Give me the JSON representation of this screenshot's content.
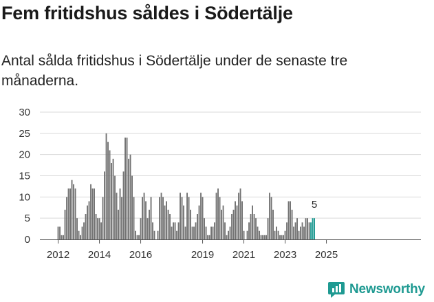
{
  "title": "Fem fritidshus såldes i Södertälje",
  "subtitle": "Antal sålda fritidshus i Södertälje under de senaste tre månaderna.",
  "brand": "Newsworthy",
  "colors": {
    "bar": "#737373",
    "highlight": "#1f9a92",
    "grid": "#d9d9d9",
    "axis": "#555555"
  },
  "chart_data": {
    "type": "bar",
    "title": "Fem fritidshus såldes i Södertälje",
    "xlabel": "",
    "ylabel": "",
    "ylim": [
      0,
      30
    ],
    "yticks": [
      0,
      5,
      10,
      15,
      20,
      25,
      30
    ],
    "x_start": "2012-01",
    "x_end": "2025-11",
    "x_ticks": [
      "2012",
      "2014",
      "2016",
      "2019",
      "2021",
      "2023",
      "2025"
    ],
    "highlight_label": "5",
    "values": [
      3,
      3,
      1,
      1,
      7,
      10,
      12,
      12,
      14,
      13,
      12,
      5,
      2,
      1,
      3,
      4,
      6,
      8,
      9,
      13,
      12,
      12,
      6,
      5,
      5,
      4,
      10,
      16,
      25,
      23,
      21,
      18,
      19,
      15,
      11,
      7,
      12,
      10,
      16,
      24,
      24,
      19,
      20,
      15,
      10,
      2,
      1,
      1,
      5,
      10,
      11,
      9,
      5,
      7,
      10,
      4,
      2,
      0,
      2,
      10,
      11,
      10,
      8,
      9,
      7,
      6,
      3,
      4,
      4,
      2,
      4,
      11,
      10,
      8,
      3,
      11,
      10,
      7,
      3,
      3,
      4,
      6,
      8,
      11,
      10,
      5,
      3,
      1,
      1,
      3,
      3,
      4,
      11,
      12,
      10,
      7,
      8,
      4,
      1,
      2,
      3,
      6,
      7,
      9,
      8,
      11,
      12,
      9,
      2,
      0,
      2,
      4,
      6,
      8,
      6,
      5,
      3,
      2,
      1,
      1,
      1,
      1,
      5,
      11,
      10,
      7,
      2,
      3,
      2,
      1,
      1,
      1,
      2,
      4,
      9,
      9,
      7,
      3,
      4,
      5,
      2,
      3,
      4,
      3,
      5,
      5,
      4,
      4,
      5,
      5
    ]
  }
}
